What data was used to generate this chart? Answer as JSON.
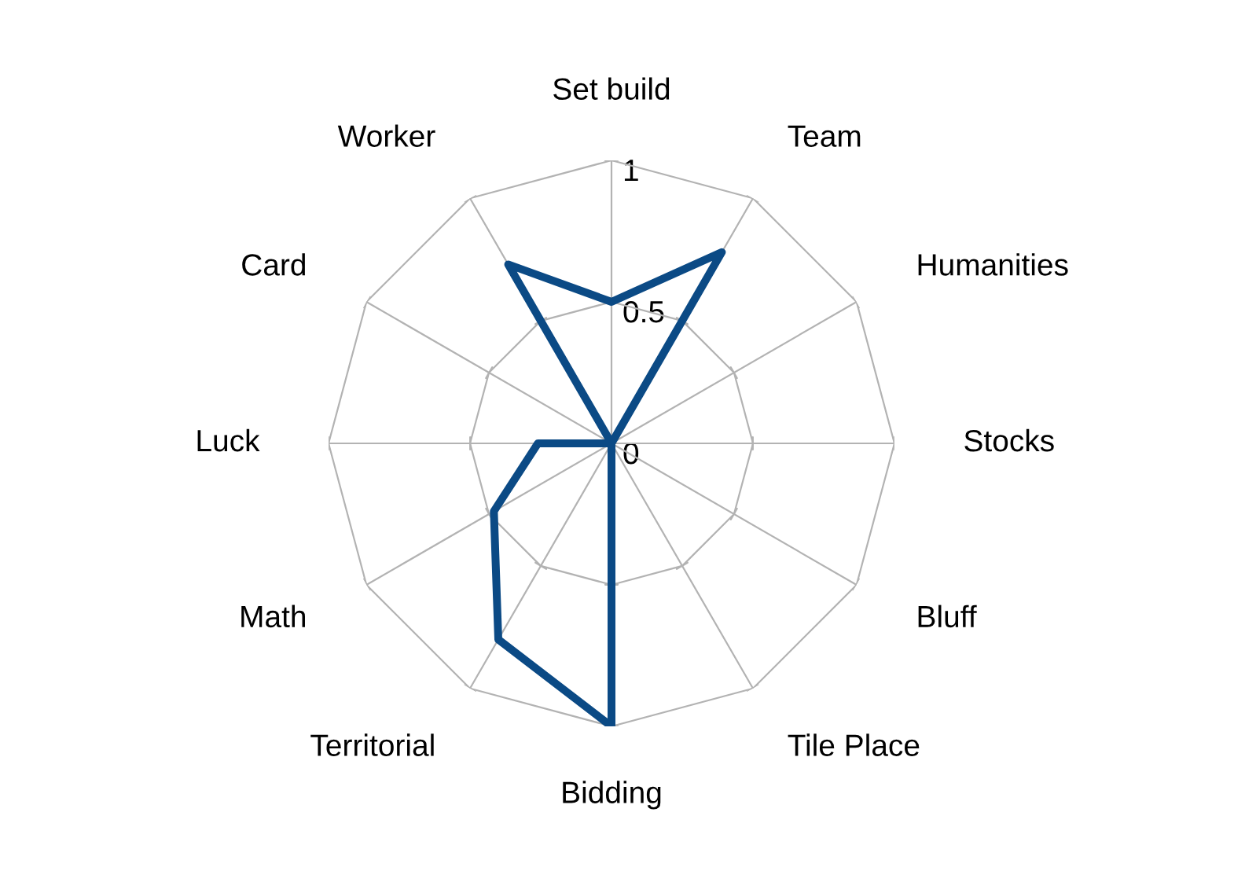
{
  "chart_data": {
    "type": "radar",
    "categories": [
      "Set build",
      "Team",
      "Humanities",
      "Stocks",
      "Bluff",
      "Tile Place",
      "Bidding",
      "Territorial",
      "Math",
      "Luck",
      "Card",
      "Worker"
    ],
    "series": [
      {
        "color": "#0b4a85",
        "values": [
          0.5,
          0.78,
          0,
          0,
          0,
          0,
          1,
          0.8,
          0.48,
          0.26,
          0,
          0.73
        ]
      }
    ],
    "ylim": [
      0,
      1
    ],
    "yticks": [
      0,
      0.5,
      1
    ],
    "grid": true
  }
}
